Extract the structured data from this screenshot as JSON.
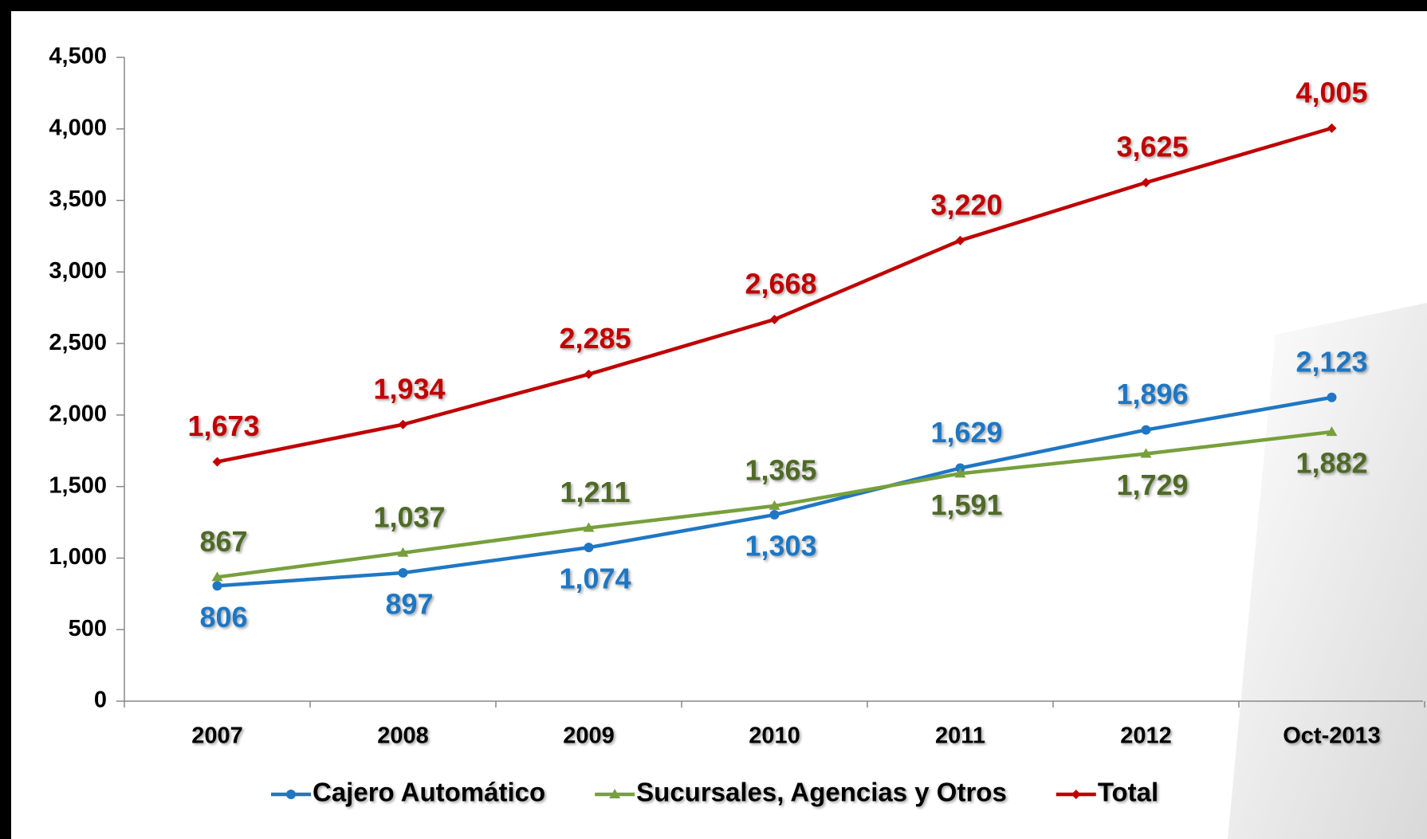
{
  "chart_data": {
    "type": "line",
    "categories": [
      "2007",
      "2008",
      "2009",
      "2010",
      "2011",
      "2012",
      "Oct-2013"
    ],
    "series": [
      {
        "name": "Cajero Automático",
        "color": "#1f77c4",
        "marker": "circle",
        "values": [
          806,
          897,
          1074,
          1303,
          1629,
          1896,
          2123
        ],
        "value_labels": [
          "806",
          "897",
          "1,074",
          "1,303",
          "1,629",
          "1,896",
          "2,123"
        ]
      },
      {
        "name": "Sucursales, Agencias y Otros",
        "color": "#77a03c",
        "label_color": "#4f6a28",
        "marker": "triangle",
        "values": [
          867,
          1037,
          1211,
          1365,
          1591,
          1729,
          1882
        ],
        "value_labels": [
          "867",
          "1,037",
          "1,211",
          "1,365",
          "1,591",
          "1,729",
          "1,882"
        ]
      },
      {
        "name": "Total",
        "color": "#c00000",
        "marker": "diamond",
        "values": [
          1673,
          1934,
          2285,
          2668,
          3220,
          3625,
          4005
        ],
        "value_labels": [
          "1,673",
          "1,934",
          "2,285",
          "2,668",
          "3,220",
          "3,625",
          "4,005"
        ]
      }
    ],
    "ylim": [
      0,
      4500
    ],
    "yticks": [
      0,
      500,
      {
        "value": 1000,
        "label": "1,000"
      },
      {
        "value": 1500,
        "label": "1,500"
      },
      {
        "value": 2000,
        "label": "2,000"
      },
      {
        "value": 2500,
        "label": "2,500"
      },
      {
        "value": 3000,
        "label": "3,000"
      },
      {
        "value": 3500,
        "label": "3,500"
      },
      {
        "value": 4000,
        "label": "4,000"
      },
      {
        "value": 4500,
        "label": "4,500"
      }
    ],
    "legend": "bottom"
  }
}
